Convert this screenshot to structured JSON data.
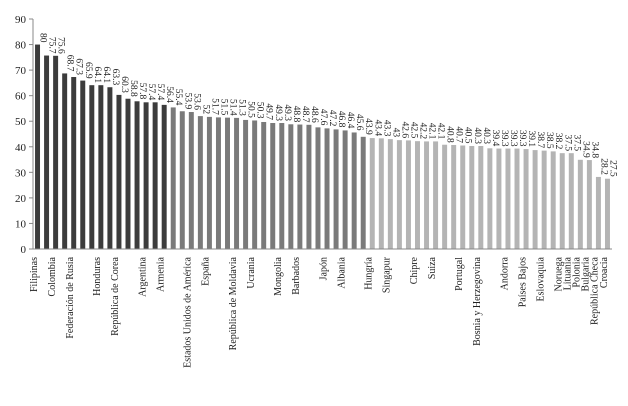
{
  "chart_data": {
    "type": "bar",
    "ylim": [
      0,
      90
    ],
    "yticks": [
      0,
      10,
      20,
      30,
      40,
      50,
      60,
      70,
      80,
      90
    ],
    "grid": false,
    "legend": "none",
    "colors": {
      "dark": "#3c3c3c",
      "mid": "#7a7a7a",
      "light": "#b4b4b4"
    },
    "values": [
      80,
      75.7,
      75.6,
      68.7,
      67.3,
      65.9,
      64.1,
      64.1,
      63.3,
      60.3,
      58.8,
      57.8,
      57.4,
      57.4,
      56.4,
      55.4,
      53.9,
      53.6,
      52,
      51.7,
      51.5,
      51.4,
      51.3,
      50.5,
      50.3,
      49.7,
      49.3,
      49.3,
      48.8,
      48.7,
      48.6,
      47.6,
      47.2,
      46.8,
      46.4,
      45.6,
      43.9,
      43.4,
      43.3,
      43,
      42.6,
      42.5,
      42.2,
      42.1,
      42.1,
      40.8,
      40.7,
      40.5,
      40.3,
      40.3,
      39.4,
      39.3,
      39.3,
      39.3,
      39.1,
      38.7,
      38.5,
      38.2,
      37.5,
      37.5,
      34.9,
      34.8,
      28.2,
      27.5
    ],
    "value_labels": [
      "80",
      "75.7",
      "75.6",
      "68.7",
      "67.3",
      "65.9",
      "64.1",
      "64.1",
      "63.3",
      "60.3",
      "58.8",
      "57.8",
      "57.4",
      "57.4",
      "56.4",
      "55.4",
      "53.9",
      "53.6",
      "52",
      "51.7",
      "51.5",
      "51.4",
      "51.3",
      "50.5",
      "50.3",
      "49.7",
      "49.3",
      "49.3",
      "48.8",
      "48.7",
      "48.6",
      "47.6",
      "47.2",
      "46.8",
      "46.4",
      "45.6",
      "43.9",
      "43.4",
      "43.3",
      "43",
      "42.6",
      "42.5",
      "42.2",
      "42.1",
      "42.1",
      "40.8",
      "40.7",
      "40.5",
      "40.3",
      "40.3",
      "39.4",
      "39.3",
      "39.3",
      "39.3",
      "39.1",
      "38.7",
      "38.5",
      "38.2",
      "37.5",
      "37.5",
      "34.9",
      "34.8",
      "28.2",
      "27.5"
    ],
    "bar_shade": [
      "dark",
      "dark",
      "dark",
      "dark",
      "dark",
      "dark",
      "dark",
      "dark",
      "dark",
      "dark",
      "dark",
      "dark",
      "dark",
      "dark",
      "dark",
      "mid",
      "mid",
      "mid",
      "mid",
      "mid",
      "mid",
      "mid",
      "mid",
      "mid",
      "mid",
      "mid",
      "mid",
      "mid",
      "mid",
      "mid",
      "mid",
      "mid",
      "mid",
      "mid",
      "mid",
      "mid",
      "mid",
      "light",
      "light",
      "light",
      "light",
      "light",
      "light",
      "light",
      "light",
      "light",
      "light",
      "light",
      "light",
      "light",
      "light",
      "light",
      "light",
      "light",
      "light",
      "light",
      "light",
      "light",
      "light",
      "light",
      "light",
      "light",
      "light",
      "light"
    ],
    "category_labels": [
      {
        "index": 0,
        "text": "Filipinas"
      },
      {
        "index": 2,
        "text": "Colombia"
      },
      {
        "index": 4,
        "text": "Federación de Rusia"
      },
      {
        "index": 7,
        "text": "Honduras"
      },
      {
        "index": 9,
        "text": "República de Corea"
      },
      {
        "index": 12,
        "text": "Argentina"
      },
      {
        "index": 14,
        "text": "Armenia"
      },
      {
        "index": 17,
        "text": "Estados Unidos de América"
      },
      {
        "index": 19,
        "text": "España"
      },
      {
        "index": 22,
        "text": "República de Moldavia"
      },
      {
        "index": 24,
        "text": "Ucrania"
      },
      {
        "index": 27,
        "text": "Mongolia"
      },
      {
        "index": 29,
        "text": "Barbados"
      },
      {
        "index": 32,
        "text": "Japón"
      },
      {
        "index": 34,
        "text": "Albania"
      },
      {
        "index": 37,
        "text": "Hungría"
      },
      {
        "index": 39,
        "text": "Singapur"
      },
      {
        "index": 42,
        "text": "Chipre"
      },
      {
        "index": 44,
        "text": "Suiza"
      },
      {
        "index": 47,
        "text": "Portugal"
      },
      {
        "index": 49,
        "text": "Bosnia y Herzegovina"
      },
      {
        "index": 52,
        "text": "Andorra"
      },
      {
        "index": 54,
        "text": "Países Bajos"
      },
      {
        "index": 56,
        "text": "Eslovaquia"
      },
      {
        "index": 58,
        "text": "Noruega"
      },
      {
        "index": 59,
        "text": "Lituania"
      },
      {
        "index": 60,
        "text": "Polonia"
      },
      {
        "index": 61,
        "text": "Bulgaria"
      },
      {
        "index": 62,
        "text": "República Checa"
      },
      {
        "index": 63,
        "text": "Croacia"
      }
    ]
  }
}
